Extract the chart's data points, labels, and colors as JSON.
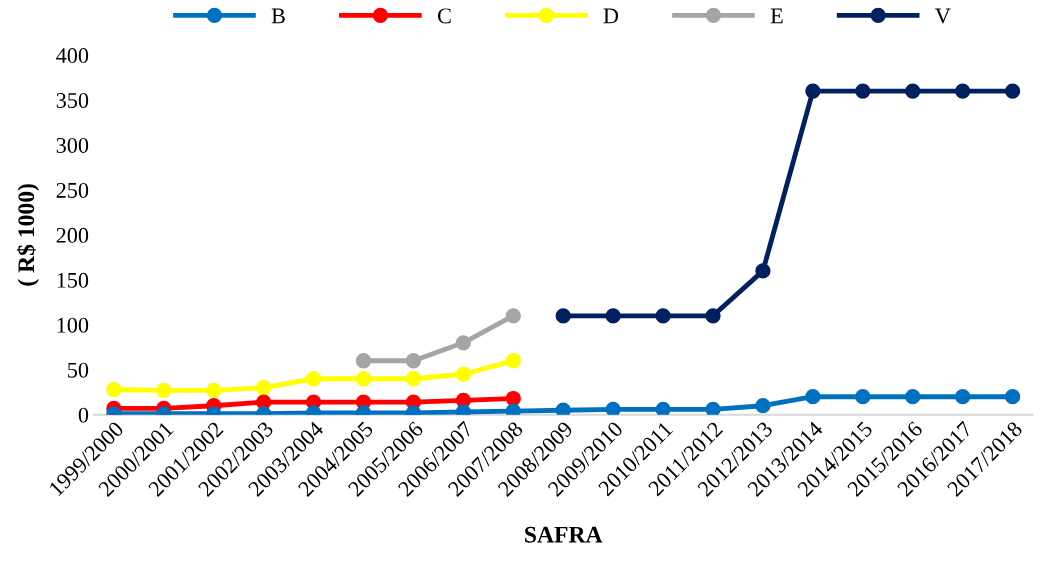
{
  "chart_data": {
    "type": "line",
    "xlabel": "SAFRA",
    "ylabel": "( R$ 1000)",
    "categories": [
      "1999/2000",
      "2000/2001",
      "2001/2002",
      "2002/2003",
      "2003/2004",
      "2004/2005",
      "2005/2006",
      "2006/2007",
      "2007/2008",
      "2008/2009",
      "2009/2010",
      "2010/2011",
      "2011/2012",
      "2012/2013",
      "2013/2014",
      "2014/2015",
      "2015/2016",
      "2016/2017",
      "2017/2018"
    ],
    "series": [
      {
        "name": "B",
        "color": "#0070c0",
        "values": [
          1,
          1,
          1,
          1,
          2,
          2,
          2,
          3,
          4,
          5,
          6,
          6,
          6,
          10,
          20,
          20,
          20,
          20,
          20
        ]
      },
      {
        "name": "C",
        "color": "#ff0000",
        "values": [
          7,
          7,
          10,
          14,
          14,
          14,
          14,
          16,
          18,
          null,
          null,
          null,
          null,
          null,
          null,
          null,
          null,
          null,
          null
        ]
      },
      {
        "name": "D",
        "color": "#ffff00",
        "values": [
          28,
          27,
          27,
          30,
          40,
          40,
          40,
          45,
          60,
          null,
          null,
          null,
          null,
          null,
          null,
          null,
          null,
          null,
          null
        ]
      },
      {
        "name": "E",
        "color": "#a5a5a5",
        "values": [
          null,
          null,
          null,
          null,
          null,
          60,
          60,
          80,
          110,
          null,
          null,
          null,
          null,
          null,
          null,
          null,
          null,
          null,
          null
        ]
      },
      {
        "name": "V",
        "color": "#002060",
        "values": [
          null,
          null,
          null,
          null,
          null,
          null,
          null,
          null,
          null,
          110,
          110,
          110,
          110,
          160,
          360,
          360,
          360,
          360,
          360
        ]
      }
    ],
    "ylim": [
      0,
      400
    ],
    "yticks": [
      0,
      50,
      100,
      150,
      200,
      250,
      300,
      350,
      400
    ],
    "grid": false,
    "legend": "top",
    "marker": "circle",
    "line_style": "solid"
  }
}
